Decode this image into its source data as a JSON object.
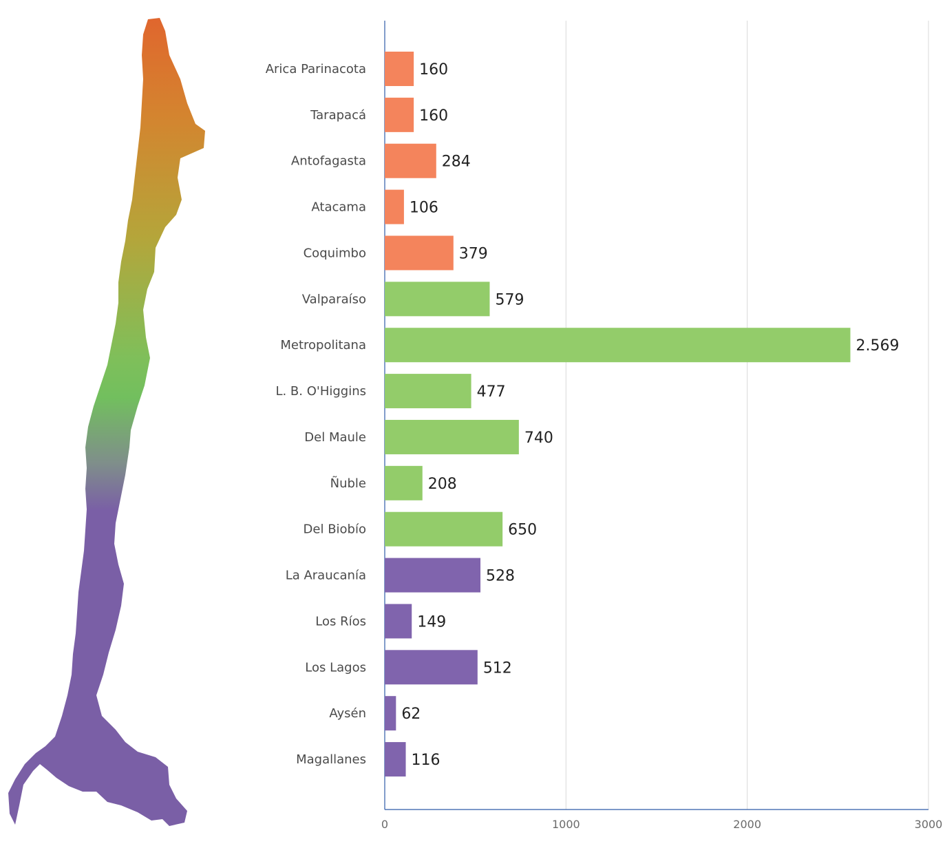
{
  "map": {
    "icon": "chile-map-icon"
  },
  "chart_data": {
    "type": "bar",
    "orientation": "horizontal",
    "categories": [
      "Arica Parinacota",
      "Tarapacá",
      "Antofagasta",
      "Atacama",
      "Coquimbo",
      "Valparaíso",
      "Metropolitana",
      "L. B. O'Higgins",
      "Del Maule",
      "Ñuble",
      "Del Biobío",
      "La Araucanía",
      "Los Ríos",
      "Los Lagos",
      "Aysén",
      "Magallanes"
    ],
    "values": [
      160,
      160,
      284,
      106,
      379,
      579,
      2569,
      477,
      740,
      208,
      650,
      528,
      149,
      512,
      62,
      116
    ],
    "value_labels": [
      "160",
      "160",
      "284",
      "106",
      "379",
      "579",
      "2.569",
      "477",
      "740",
      "208",
      "650",
      "528",
      "149",
      "512",
      "62",
      "116"
    ],
    "zone_colors": [
      "#f4845c",
      "#f4845c",
      "#f4845c",
      "#f4845c",
      "#f4845c",
      "#93cc6a",
      "#93cc6a",
      "#93cc6a",
      "#93cc6a",
      "#93cc6a",
      "#93cc6a",
      "#8064ad",
      "#8064ad",
      "#8064ad",
      "#8064ad",
      "#8064ad"
    ],
    "xlim": [
      0,
      3000
    ],
    "xticks": [
      0,
      1000,
      2000,
      3000
    ],
    "xtick_labels": [
      "0",
      "1000",
      "2000",
      "3000"
    ],
    "grid": true,
    "title": "",
    "xlabel": "",
    "ylabel": ""
  }
}
